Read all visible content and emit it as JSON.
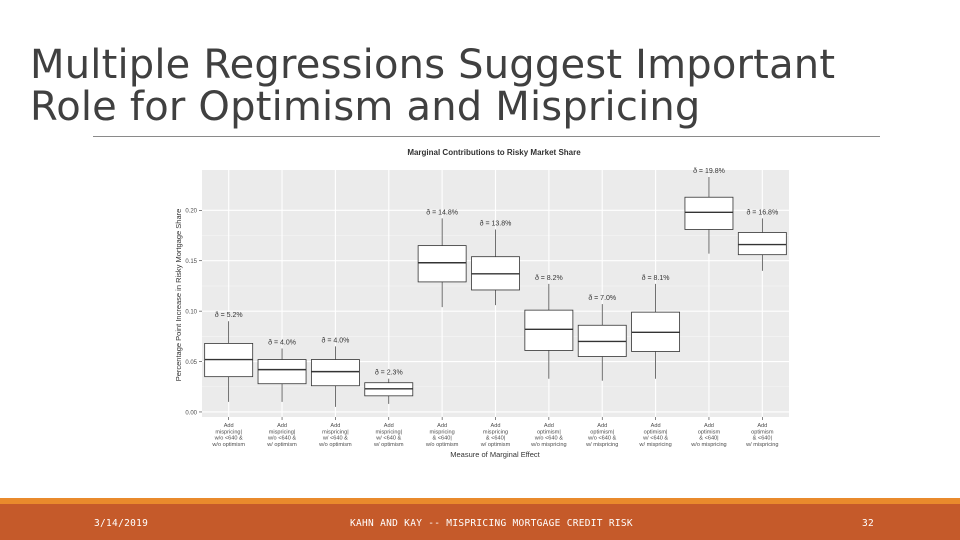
{
  "slide": {
    "title_line1": "Multiple Regressions Suggest Important",
    "title_line2": "Role for Optimism and Mispricing"
  },
  "footer": {
    "date": "3/14/2019",
    "center": "KAHN AND KAY -- MISPRICING MORTGAGE CREDIT RISK",
    "page": "32"
  },
  "chart_data": {
    "type": "boxplot",
    "title": "Marginal Contributions to Risky Market Share",
    "xlabel": "Measure of Marginal Effect",
    "ylabel": "Percentage Point Increase in Risky Mortgage Share",
    "ylim": [
      -0.005,
      0.24
    ],
    "yticks": [
      0.0,
      0.05,
      0.1,
      0.15,
      0.2
    ],
    "ytick_labels": [
      "0.00",
      "0.05",
      "0.10",
      "0.15",
      "0.20"
    ],
    "grid": true,
    "colors": {
      "panel": "#ebebeb",
      "grid_major": "#ffffff",
      "box_fill": "#ffffff",
      "box_line": "#333333",
      "text": "#4d4d4d"
    },
    "categories": [
      {
        "label": [
          "Add",
          "mispricing|",
          "w/o <640 &",
          "w/o optimism"
        ],
        "annotation": "ð = 5.2%",
        "whisker_low": 0.01,
        "q1": 0.035,
        "median": 0.052,
        "q3": 0.068,
        "whisker_high": 0.09
      },
      {
        "label": [
          "Add",
          "mispricing|",
          "w/o <640 &",
          "w/ optimism"
        ],
        "annotation": "ð = 4.0%",
        "whisker_low": 0.01,
        "q1": 0.028,
        "median": 0.042,
        "q3": 0.052,
        "whisker_high": 0.063
      },
      {
        "label": [
          "Add",
          "mispricing|",
          "w/ <640 &",
          "w/o optimism"
        ],
        "annotation": "ð = 4.0%",
        "whisker_low": 0.005,
        "q1": 0.026,
        "median": 0.04,
        "q3": 0.052,
        "whisker_high": 0.065
      },
      {
        "label": [
          "Add",
          "mispricing|",
          "w/ <640 &",
          "w/ optimism"
        ],
        "annotation": "ð = 2.3%",
        "whisker_low": 0.008,
        "q1": 0.016,
        "median": 0.023,
        "q3": 0.029,
        "whisker_high": 0.033
      },
      {
        "label": [
          "Add",
          "mispricing",
          "& <640|",
          "w/o optimism"
        ],
        "annotation": "ð = 14.8%",
        "whisker_low": 0.104,
        "q1": 0.129,
        "median": 0.148,
        "q3": 0.165,
        "whisker_high": 0.192
      },
      {
        "label": [
          "Add",
          "mispricing",
          "& <640|",
          "w/ optimism"
        ],
        "annotation": "ð = 13.8%",
        "whisker_low": 0.106,
        "q1": 0.121,
        "median": 0.137,
        "q3": 0.154,
        "whisker_high": 0.181
      },
      {
        "label": [
          "Add",
          "optimism|",
          "w/o <640 &",
          "w/o mispricing"
        ],
        "annotation": "ð = 8.2%",
        "whisker_low": 0.033,
        "q1": 0.061,
        "median": 0.082,
        "q3": 0.101,
        "whisker_high": 0.127
      },
      {
        "label": [
          "Add",
          "optimism|",
          "w/o <640 &",
          "w/ mispricing"
        ],
        "annotation": "ð = 7.0%",
        "whisker_low": 0.031,
        "q1": 0.055,
        "median": 0.07,
        "q3": 0.086,
        "whisker_high": 0.107
      },
      {
        "label": [
          "Add",
          "optimism|",
          "w/ <640 &",
          "w/ mispricing"
        ],
        "annotation": "ð = 8.1%",
        "whisker_low": 0.033,
        "q1": 0.06,
        "median": 0.079,
        "q3": 0.099,
        "whisker_high": 0.127
      },
      {
        "label": [
          "Add",
          "optimism",
          "& <640|",
          "w/o mispricing"
        ],
        "annotation": "ð = 19.8%",
        "whisker_low": 0.157,
        "q1": 0.181,
        "median": 0.198,
        "q3": 0.213,
        "whisker_high": 0.233
      },
      {
        "label": [
          "Add",
          "optimism",
          "& <640|",
          "w/ mispricing"
        ],
        "annotation": "ð = 16.8%",
        "whisker_low": 0.14,
        "q1": 0.156,
        "median": 0.166,
        "q3": 0.178,
        "whisker_high": 0.192
      }
    ]
  }
}
